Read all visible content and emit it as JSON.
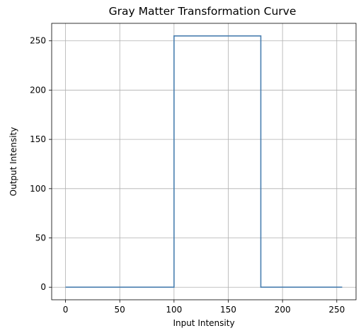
{
  "chart_data": {
    "type": "line",
    "title": "Gray Matter Transformation Curve",
    "xlabel": "Input Intensity",
    "ylabel": "Output Intensity",
    "xlim": [
      -12.75,
      267.75
    ],
    "ylim": [
      -12.75,
      267.75
    ],
    "x_ticks": [
      0,
      50,
      100,
      150,
      200,
      250
    ],
    "y_ticks": [
      0,
      50,
      100,
      150,
      200,
      250
    ],
    "grid": true,
    "series": [
      {
        "color": "#4a7fb0",
        "x": [
          0,
          100,
          100,
          180,
          180,
          255
        ],
        "y": [
          0,
          0,
          255,
          255,
          0,
          0
        ]
      }
    ]
  }
}
